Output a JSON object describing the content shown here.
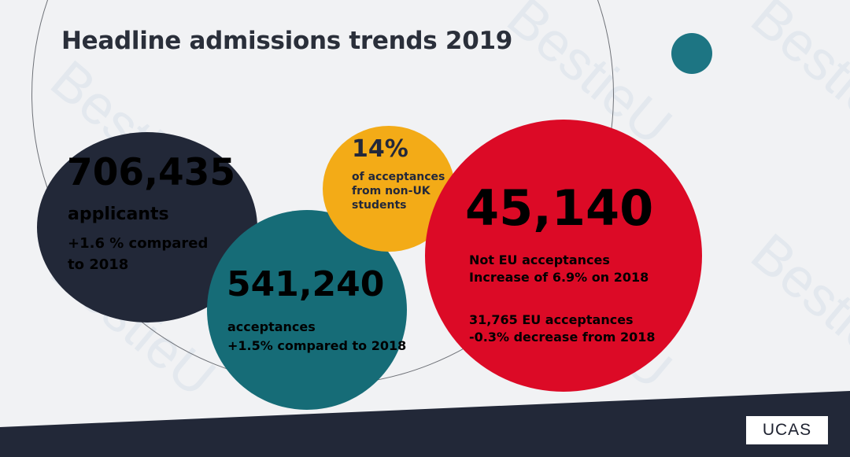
{
  "title": "Headline admissions trends 2019",
  "applicants": {
    "number": "706,435",
    "label": "applicants",
    "change_line1": "+1.6 % compared",
    "change_line2": "to 2018"
  },
  "acceptances": {
    "number": "541,240",
    "label": "acceptances",
    "change": "+1.5% compared to 2018"
  },
  "non_uk": {
    "percent": "14%",
    "line1": "of acceptances",
    "line2": "from non-UK",
    "line3": "students"
  },
  "non_eu": {
    "number": "45,140",
    "line1": "Not EU acceptances",
    "line2": "Increase of 6.9% on 2018",
    "line3": "31,765 EU acceptances",
    "line4": "-0.3% decrease from 2018"
  },
  "logo": "UCAS",
  "colors": {
    "dark_navy": "#222838",
    "teal": "#166c77",
    "yellow": "#f3ab17",
    "red": "#dc0a26",
    "background": "#f1f2f4"
  }
}
